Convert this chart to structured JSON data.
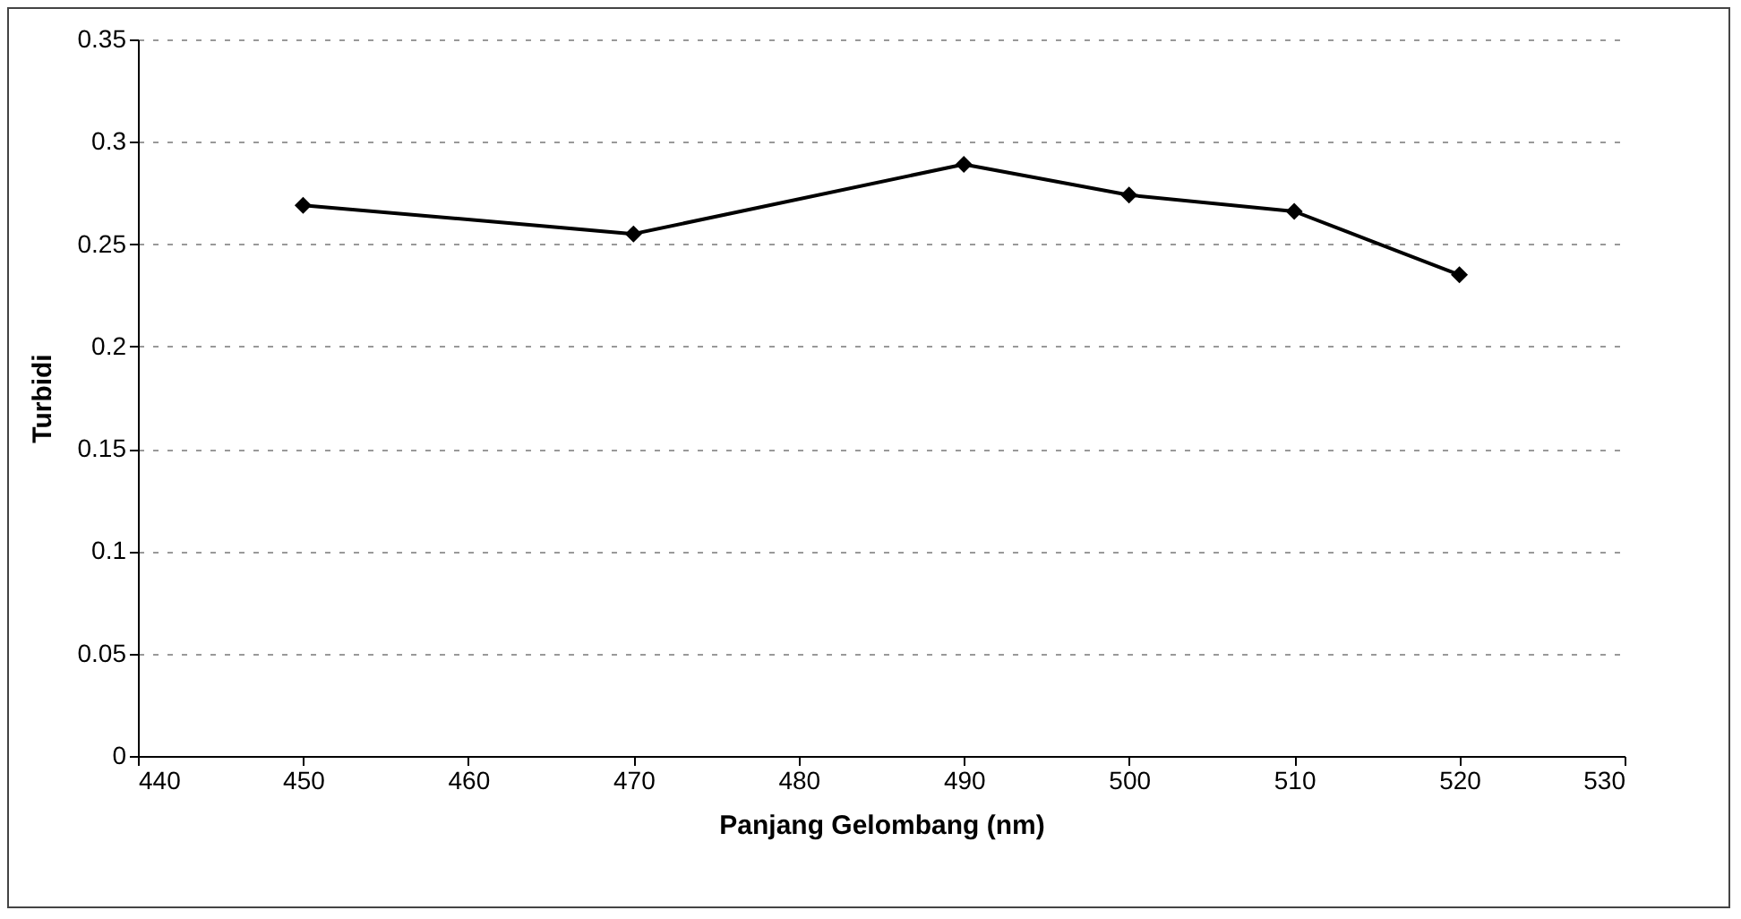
{
  "chart_data": {
    "type": "line",
    "xlabel": "Panjang Gelombang (nm)",
    "ylabel": "Turbidi",
    "x": [
      450,
      470,
      490,
      500,
      510,
      520
    ],
    "series": [
      {
        "color": "#000000",
        "values": [
          0.269,
          0.255,
          0.289,
          0.274,
          0.266,
          0.235
        ]
      }
    ],
    "xlim": [
      440,
      530
    ],
    "xticks": [
      440,
      450,
      460,
      470,
      480,
      490,
      500,
      510,
      520,
      530
    ],
    "ylim": [
      0,
      0.35
    ],
    "yticks": [
      0,
      0.05,
      0.1,
      0.15,
      0.2,
      0.25,
      0.3,
      0.35
    ],
    "grid": "y",
    "marker": "diamond",
    "line_style": "solid"
  }
}
